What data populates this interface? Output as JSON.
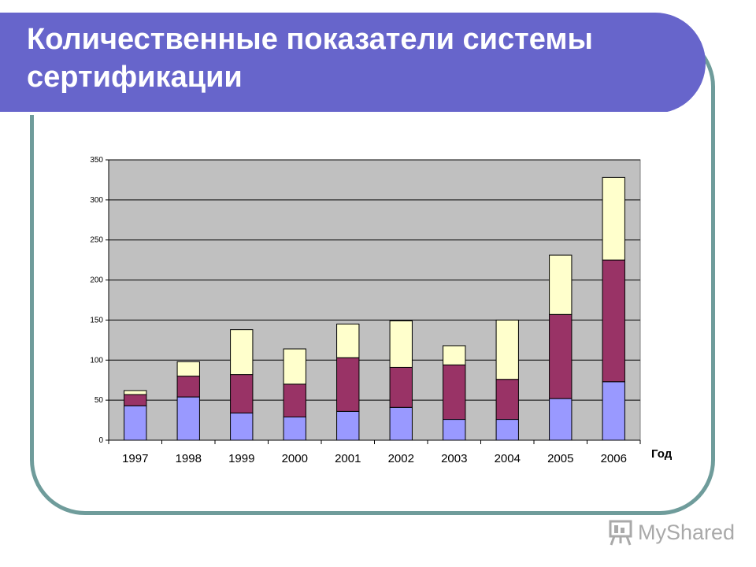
{
  "slide": {
    "title": "Количественные показатели системы сертификации"
  },
  "branding": {
    "logo_text": "MyShared"
  },
  "colors": {
    "title_bg": "#6765cb",
    "frame": "#6f9c9b",
    "plot_bg": "#c0c0c0"
  },
  "chart_data": {
    "type": "bar",
    "stacked": true,
    "categories": [
      "1997",
      "1998",
      "1999",
      "2000",
      "2001",
      "2002",
      "2003",
      "2004",
      "2005",
      "2006"
    ],
    "series": [
      {
        "values": [
          43,
          54,
          34,
          29,
          36,
          41,
          26,
          26,
          52,
          73
        ],
        "color": "#9999ff"
      },
      {
        "values": [
          14,
          26,
          48,
          41,
          67,
          50,
          68,
          50,
          105,
          152
        ],
        "color": "#993366"
      },
      {
        "values": [
          5,
          18,
          56,
          44,
          42,
          58,
          24,
          74,
          74,
          103
        ],
        "color": "#ffffcc"
      }
    ],
    "xlabel": "Год",
    "ylabel": "",
    "ylim": [
      0,
      350
    ],
    "yticks": [
      0,
      50,
      100,
      150,
      200,
      250,
      300,
      350
    ],
    "grid": true,
    "legend": "none"
  }
}
